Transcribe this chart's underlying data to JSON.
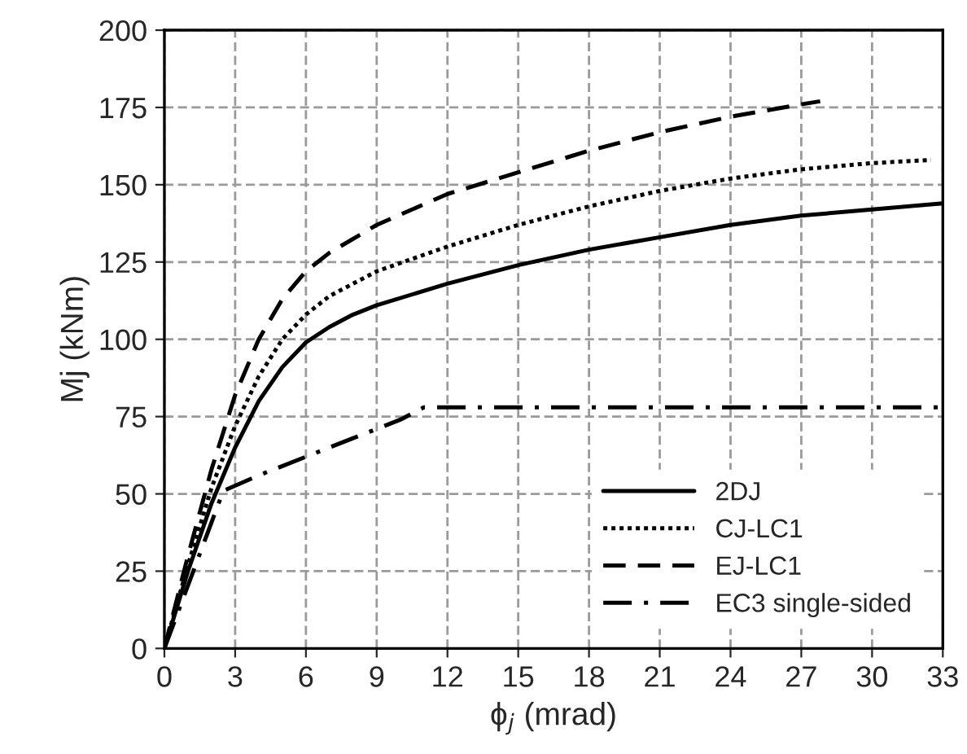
{
  "chart_data": {
    "type": "line",
    "xlabel": "ϕ$_{j}$ (mrad)",
    "ylabel": "Mj (kNm)",
    "xlim": [
      0,
      33
    ],
    "ylim": [
      0,
      200
    ],
    "xticks": [
      0,
      3,
      6,
      9,
      12,
      15,
      18,
      21,
      24,
      27,
      30,
      33
    ],
    "yticks": [
      0,
      25,
      50,
      75,
      100,
      125,
      150,
      175,
      200
    ],
    "grid": true,
    "legend": "bottom right",
    "marker": "none",
    "series": [
      {
        "name": "2DJ",
        "color": "#000000",
        "line_style": "solid",
        "x": [
          0,
          1,
          2,
          3,
          4,
          5,
          6,
          7,
          8,
          9,
          12,
          15,
          18,
          21,
          24,
          27,
          30,
          33
        ],
        "values": [
          0,
          25,
          47,
          65,
          80,
          91,
          99,
          104,
          108,
          111,
          118,
          124,
          129,
          133,
          137,
          140,
          142,
          144
        ]
      },
      {
        "name": "CJ-LC1",
        "color": "#000000",
        "line_style": "dotted",
        "x": [
          0,
          1,
          2,
          3,
          4,
          5,
          6,
          7,
          9,
          12,
          15,
          18,
          21,
          24,
          27,
          30,
          32.5
        ],
        "values": [
          0,
          27,
          52,
          72,
          88,
          100,
          108,
          114,
          122,
          130,
          137,
          143,
          148,
          152,
          155,
          157,
          158
        ]
      },
      {
        "name": "EJ-LC1",
        "color": "#000000",
        "line_style": "dashed",
        "x": [
          0,
          1,
          2,
          3,
          4,
          5,
          6,
          7,
          9,
          12,
          15,
          18,
          21,
          24,
          27,
          27.8
        ],
        "values": [
          0,
          30,
          58,
          82,
          100,
          113,
          122,
          128,
          137,
          147,
          154,
          161,
          167,
          172,
          176,
          177
        ]
      },
      {
        "name": "EC3 single-sided",
        "color": "#000000",
        "line_style": "dashdot",
        "x": [
          0,
          2.5,
          4,
          6,
          8,
          9,
          10,
          11,
          33
        ],
        "values": [
          0,
          51,
          56,
          62,
          68,
          71,
          74,
          78,
          78
        ]
      }
    ]
  }
}
